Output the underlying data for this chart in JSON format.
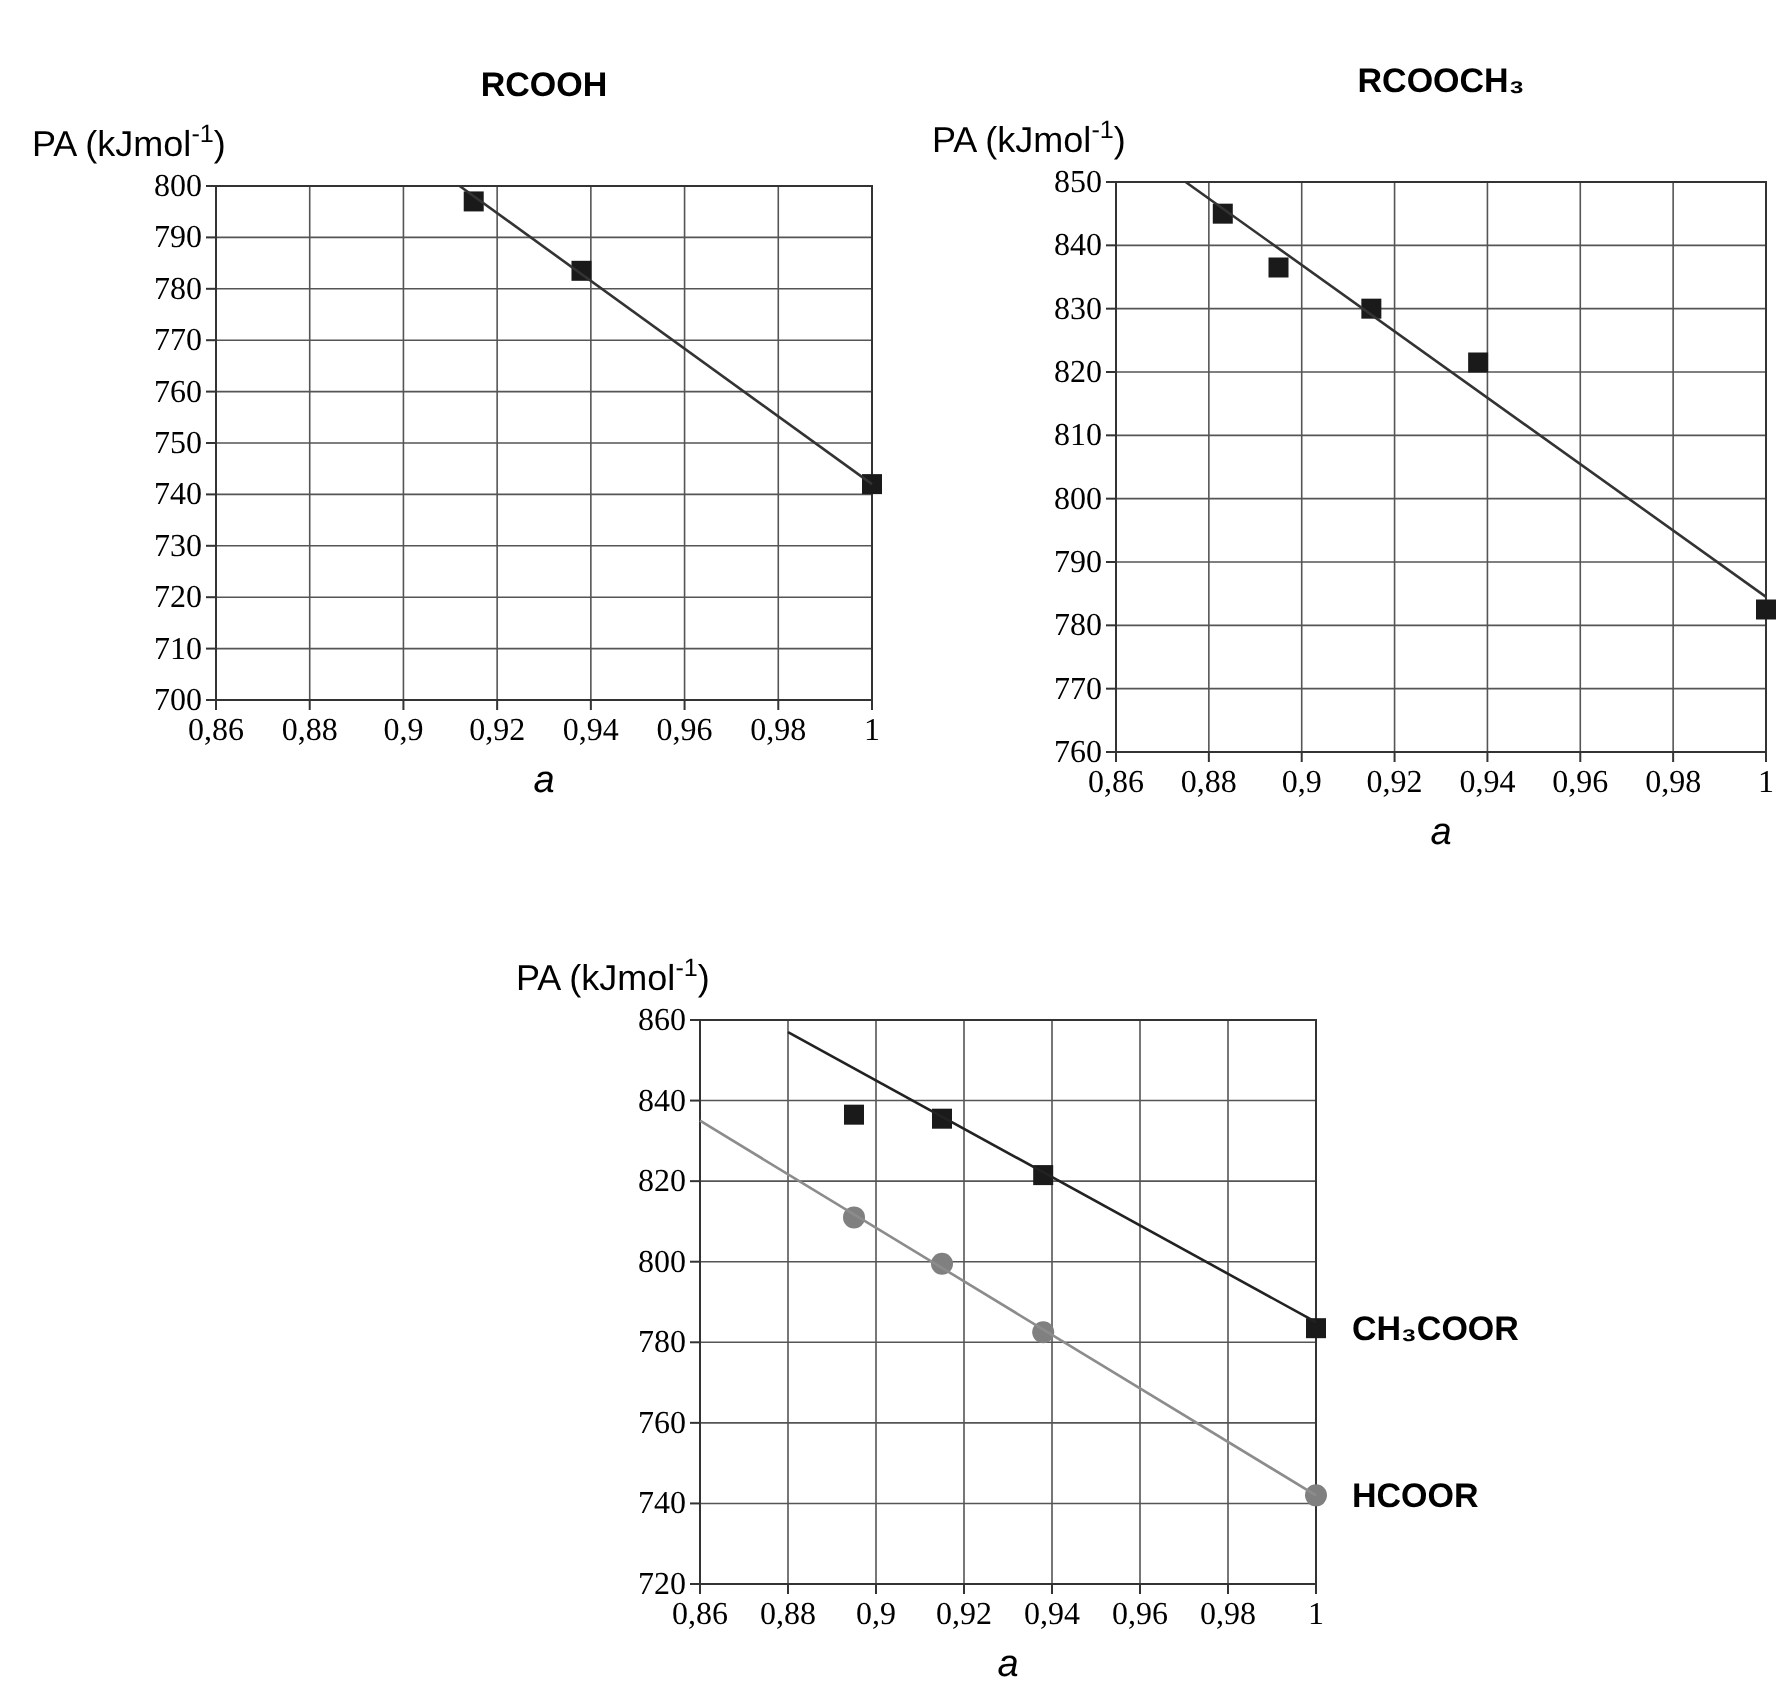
{
  "chart_data": [
    {
      "type": "scatter",
      "title": "RCOOH",
      "xlabel": "a",
      "ylabel": "PA (kJmol$^{-1}$)",
      "grid": true,
      "xlim": [
        0.86,
        1
      ],
      "ylim": [
        700,
        800
      ],
      "xticks": [
        {
          "value": 0.86,
          "label": "0,86"
        },
        {
          "value": 0.88,
          "label": "0,88"
        },
        {
          "value": 0.9,
          "label": "0,9"
        },
        {
          "value": 0.92,
          "label": "0,92"
        },
        {
          "value": 0.94,
          "label": "0,94"
        },
        {
          "value": 0.96,
          "label": "0,96"
        },
        {
          "value": 0.98,
          "label": "0,98"
        },
        {
          "value": 1,
          "label": "1"
        }
      ],
      "yticks": [
        700,
        710,
        720,
        730,
        740,
        750,
        760,
        770,
        780,
        790,
        800
      ],
      "series": [
        {
          "type": "scatter",
          "marker": "square",
          "color": "#1a1a1a",
          "x": [
            0.915,
            0.938,
            1
          ],
          "values": [
            797,
            783.5,
            742
          ]
        },
        {
          "type": "line",
          "marker": "none",
          "color": "#333333",
          "x": [
            0.912,
            1
          ],
          "values": [
            800,
            742
          ]
        }
      ]
    },
    {
      "type": "scatter",
      "title": "RCOOCH₃",
      "xlabel": "a",
      "ylabel": "PA (kJmol$^{-1}$)",
      "grid": true,
      "xlim": [
        0.86,
        1
      ],
      "ylim": [
        760,
        850
      ],
      "xticks": [
        {
          "value": 0.86,
          "label": "0,86"
        },
        {
          "value": 0.88,
          "label": "0,88"
        },
        {
          "value": 0.9,
          "label": "0,9"
        },
        {
          "value": 0.92,
          "label": "0,92"
        },
        {
          "value": 0.94,
          "label": "0,94"
        },
        {
          "value": 0.96,
          "label": "0,96"
        },
        {
          "value": 0.98,
          "label": "0,98"
        },
        {
          "value": 1,
          "label": "1"
        }
      ],
      "yticks": [
        760,
        770,
        780,
        790,
        800,
        810,
        820,
        830,
        840,
        850
      ],
      "series": [
        {
          "type": "scatter",
          "marker": "square",
          "color": "#1a1a1a",
          "x": [
            0.883,
            0.895,
            0.915,
            0.938,
            1
          ],
          "values": [
            845,
            836.5,
            830,
            821.5,
            782.5
          ]
        },
        {
          "type": "line",
          "marker": "none",
          "color": "#333333",
          "x": [
            0.875,
            1
          ],
          "values": [
            850,
            784.5
          ]
        }
      ]
    },
    {
      "type": "scatter",
      "xlabel": "a",
      "ylabel": "PA (kJmol$^{-1}$)",
      "grid": true,
      "xlim": [
        0.86,
        1
      ],
      "ylim": [
        720,
        860
      ],
      "xticks": [
        {
          "value": 0.86,
          "label": "0,86"
        },
        {
          "value": 0.88,
          "label": "0,88"
        },
        {
          "value": 0.9,
          "label": "0,9"
        },
        {
          "value": 0.92,
          "label": "0,92"
        },
        {
          "value": 0.94,
          "label": "0,94"
        },
        {
          "value": 0.96,
          "label": "0,96"
        },
        {
          "value": 0.98,
          "label": "0,98"
        },
        {
          "value": 1,
          "label": "1"
        }
      ],
      "yticks": [
        720,
        740,
        760,
        780,
        800,
        820,
        840,
        860
      ],
      "series": [
        {
          "type": "scatter",
          "name": "CH₃COOR",
          "marker": "square",
          "color": "#1a1a1a",
          "x": [
            0.895,
            0.915,
            0.938,
            1
          ],
          "values": [
            836.5,
            835.5,
            821.5,
            783.5
          ]
        },
        {
          "type": "line",
          "marker": "none",
          "color": "#222222",
          "x": [
            0.88,
            1
          ],
          "values": [
            857,
            785
          ]
        },
        {
          "type": "scatter",
          "name": "HCOOR",
          "marker": "circle",
          "color": "#808080",
          "x": [
            0.895,
            0.915,
            0.938,
            1
          ],
          "values": [
            811,
            799.5,
            782.5,
            742
          ]
        },
        {
          "type": "line",
          "marker": "none",
          "color": "#8c8c8c",
          "x": [
            0.86,
            1
          ],
          "values": [
            835,
            742
          ]
        }
      ]
    }
  ]
}
